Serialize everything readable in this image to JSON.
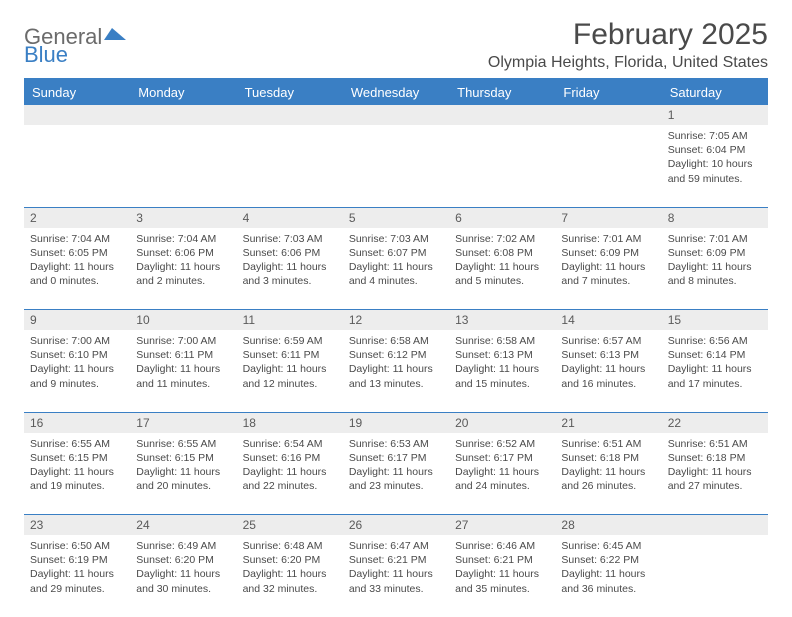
{
  "brand": {
    "part1": "General",
    "part2": "Blue"
  },
  "title": "February 2025",
  "location": "Olympia Heights, Florida, United States",
  "colors": {
    "accent": "#3a7fc4",
    "header_text": "#ffffff",
    "daynum_bg": "#ededed",
    "body_text": "#4a4a4a"
  },
  "weekdays": [
    "Sunday",
    "Monday",
    "Tuesday",
    "Wednesday",
    "Thursday",
    "Friday",
    "Saturday"
  ],
  "weeks": [
    [
      null,
      null,
      null,
      null,
      null,
      null,
      {
        "d": "1",
        "sr": "Sunrise: 7:05 AM",
        "ss": "Sunset: 6:04 PM",
        "dl1": "Daylight: 10 hours",
        "dl2": "and 59 minutes."
      }
    ],
    [
      {
        "d": "2",
        "sr": "Sunrise: 7:04 AM",
        "ss": "Sunset: 6:05 PM",
        "dl1": "Daylight: 11 hours",
        "dl2": "and 0 minutes."
      },
      {
        "d": "3",
        "sr": "Sunrise: 7:04 AM",
        "ss": "Sunset: 6:06 PM",
        "dl1": "Daylight: 11 hours",
        "dl2": "and 2 minutes."
      },
      {
        "d": "4",
        "sr": "Sunrise: 7:03 AM",
        "ss": "Sunset: 6:06 PM",
        "dl1": "Daylight: 11 hours",
        "dl2": "and 3 minutes."
      },
      {
        "d": "5",
        "sr": "Sunrise: 7:03 AM",
        "ss": "Sunset: 6:07 PM",
        "dl1": "Daylight: 11 hours",
        "dl2": "and 4 minutes."
      },
      {
        "d": "6",
        "sr": "Sunrise: 7:02 AM",
        "ss": "Sunset: 6:08 PM",
        "dl1": "Daylight: 11 hours",
        "dl2": "and 5 minutes."
      },
      {
        "d": "7",
        "sr": "Sunrise: 7:01 AM",
        "ss": "Sunset: 6:09 PM",
        "dl1": "Daylight: 11 hours",
        "dl2": "and 7 minutes."
      },
      {
        "d": "8",
        "sr": "Sunrise: 7:01 AM",
        "ss": "Sunset: 6:09 PM",
        "dl1": "Daylight: 11 hours",
        "dl2": "and 8 minutes."
      }
    ],
    [
      {
        "d": "9",
        "sr": "Sunrise: 7:00 AM",
        "ss": "Sunset: 6:10 PM",
        "dl1": "Daylight: 11 hours",
        "dl2": "and 9 minutes."
      },
      {
        "d": "10",
        "sr": "Sunrise: 7:00 AM",
        "ss": "Sunset: 6:11 PM",
        "dl1": "Daylight: 11 hours",
        "dl2": "and 11 minutes."
      },
      {
        "d": "11",
        "sr": "Sunrise: 6:59 AM",
        "ss": "Sunset: 6:11 PM",
        "dl1": "Daylight: 11 hours",
        "dl2": "and 12 minutes."
      },
      {
        "d": "12",
        "sr": "Sunrise: 6:58 AM",
        "ss": "Sunset: 6:12 PM",
        "dl1": "Daylight: 11 hours",
        "dl2": "and 13 minutes."
      },
      {
        "d": "13",
        "sr": "Sunrise: 6:58 AM",
        "ss": "Sunset: 6:13 PM",
        "dl1": "Daylight: 11 hours",
        "dl2": "and 15 minutes."
      },
      {
        "d": "14",
        "sr": "Sunrise: 6:57 AM",
        "ss": "Sunset: 6:13 PM",
        "dl1": "Daylight: 11 hours",
        "dl2": "and 16 minutes."
      },
      {
        "d": "15",
        "sr": "Sunrise: 6:56 AM",
        "ss": "Sunset: 6:14 PM",
        "dl1": "Daylight: 11 hours",
        "dl2": "and 17 minutes."
      }
    ],
    [
      {
        "d": "16",
        "sr": "Sunrise: 6:55 AM",
        "ss": "Sunset: 6:15 PM",
        "dl1": "Daylight: 11 hours",
        "dl2": "and 19 minutes."
      },
      {
        "d": "17",
        "sr": "Sunrise: 6:55 AM",
        "ss": "Sunset: 6:15 PM",
        "dl1": "Daylight: 11 hours",
        "dl2": "and 20 minutes."
      },
      {
        "d": "18",
        "sr": "Sunrise: 6:54 AM",
        "ss": "Sunset: 6:16 PM",
        "dl1": "Daylight: 11 hours",
        "dl2": "and 22 minutes."
      },
      {
        "d": "19",
        "sr": "Sunrise: 6:53 AM",
        "ss": "Sunset: 6:17 PM",
        "dl1": "Daylight: 11 hours",
        "dl2": "and 23 minutes."
      },
      {
        "d": "20",
        "sr": "Sunrise: 6:52 AM",
        "ss": "Sunset: 6:17 PM",
        "dl1": "Daylight: 11 hours",
        "dl2": "and 24 minutes."
      },
      {
        "d": "21",
        "sr": "Sunrise: 6:51 AM",
        "ss": "Sunset: 6:18 PM",
        "dl1": "Daylight: 11 hours",
        "dl2": "and 26 minutes."
      },
      {
        "d": "22",
        "sr": "Sunrise: 6:51 AM",
        "ss": "Sunset: 6:18 PM",
        "dl1": "Daylight: 11 hours",
        "dl2": "and 27 minutes."
      }
    ],
    [
      {
        "d": "23",
        "sr": "Sunrise: 6:50 AM",
        "ss": "Sunset: 6:19 PM",
        "dl1": "Daylight: 11 hours",
        "dl2": "and 29 minutes."
      },
      {
        "d": "24",
        "sr": "Sunrise: 6:49 AM",
        "ss": "Sunset: 6:20 PM",
        "dl1": "Daylight: 11 hours",
        "dl2": "and 30 minutes."
      },
      {
        "d": "25",
        "sr": "Sunrise: 6:48 AM",
        "ss": "Sunset: 6:20 PM",
        "dl1": "Daylight: 11 hours",
        "dl2": "and 32 minutes."
      },
      {
        "d": "26",
        "sr": "Sunrise: 6:47 AM",
        "ss": "Sunset: 6:21 PM",
        "dl1": "Daylight: 11 hours",
        "dl2": "and 33 minutes."
      },
      {
        "d": "27",
        "sr": "Sunrise: 6:46 AM",
        "ss": "Sunset: 6:21 PM",
        "dl1": "Daylight: 11 hours",
        "dl2": "and 35 minutes."
      },
      {
        "d": "28",
        "sr": "Sunrise: 6:45 AM",
        "ss": "Sunset: 6:22 PM",
        "dl1": "Daylight: 11 hours",
        "dl2": "and 36 minutes."
      },
      null
    ]
  ]
}
